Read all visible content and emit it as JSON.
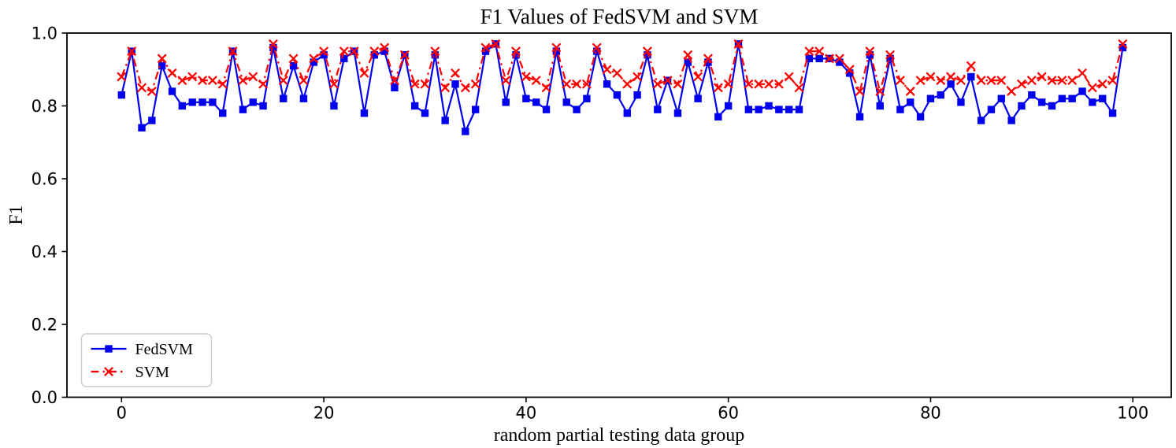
{
  "chart_data": {
    "type": "line",
    "title": "F1 Values of FedSVM and SVM",
    "xlabel": "random partial testing data group",
    "ylabel": "F1",
    "xlim": [
      -5.4,
      103.8
    ],
    "ylim": [
      0.0,
      1.0
    ],
    "grid": false,
    "legend_position": "lower left",
    "xticks": [
      0,
      20,
      40,
      60,
      80,
      100
    ],
    "xtick_labels": [
      "0",
      "20",
      "40",
      "60",
      "80",
      "100"
    ],
    "yticks": [
      0.0,
      0.2,
      0.4,
      0.6,
      0.8,
      1.0
    ],
    "ytick_labels": [
      "0.0",
      "0.2",
      "0.4",
      "0.6",
      "0.8",
      "1.0"
    ],
    "x_start": 0,
    "x_step": 1,
    "series": [
      {
        "name": "FedSVM",
        "color": "#0000ee",
        "line_style": "solid",
        "marker": "square",
        "values": [
          0.83,
          0.95,
          0.74,
          0.76,
          0.91,
          0.84,
          0.8,
          0.81,
          0.81,
          0.81,
          0.78,
          0.95,
          0.79,
          0.81,
          0.8,
          0.96,
          0.82,
          0.91,
          0.82,
          0.92,
          0.94,
          0.8,
          0.93,
          0.95,
          0.78,
          0.94,
          0.95,
          0.85,
          0.94,
          0.8,
          0.78,
          0.94,
          0.76,
          0.86,
          0.73,
          0.79,
          0.95,
          0.97,
          0.81,
          0.94,
          0.82,
          0.81,
          0.79,
          0.95,
          0.81,
          0.79,
          0.82,
          0.95,
          0.86,
          0.83,
          0.78,
          0.83,
          0.94,
          0.79,
          0.87,
          0.78,
          0.92,
          0.82,
          0.92,
          0.77,
          0.8,
          0.97,
          0.79,
          0.79,
          0.8,
          0.79,
          0.79,
          0.79,
          0.93,
          0.93,
          0.93,
          0.92,
          0.89,
          0.77,
          0.94,
          0.8,
          0.93,
          0.79,
          0.81,
          0.77,
          0.82,
          0.83,
          0.86,
          0.81,
          0.88,
          0.76,
          0.79,
          0.82,
          0.76,
          0.8,
          0.83,
          0.81,
          0.8,
          0.82,
          0.82,
          0.84,
          0.81,
          0.82,
          0.78,
          0.96
        ]
      },
      {
        "name": "SVM",
        "color": "#ff0000",
        "line_style": "dashdot",
        "marker": "x",
        "values": [
          0.88,
          0.95,
          0.85,
          0.84,
          0.93,
          0.89,
          0.87,
          0.88,
          0.87,
          0.87,
          0.86,
          0.95,
          0.87,
          0.88,
          0.86,
          0.97,
          0.87,
          0.93,
          0.87,
          0.93,
          0.95,
          0.86,
          0.95,
          0.95,
          0.89,
          0.95,
          0.96,
          0.87,
          0.94,
          0.86,
          0.86,
          0.95,
          0.85,
          0.89,
          0.85,
          0.86,
          0.96,
          0.97,
          0.87,
          0.95,
          0.88,
          0.87,
          0.85,
          0.96,
          0.86,
          0.86,
          0.86,
          0.96,
          0.9,
          0.89,
          0.86,
          0.88,
          0.95,
          0.86,
          0.87,
          0.86,
          0.94,
          0.88,
          0.93,
          0.85,
          0.86,
          0.97,
          0.86,
          0.86,
          0.86,
          0.86,
          0.88,
          0.85,
          0.95,
          0.95,
          0.93,
          0.93,
          0.9,
          0.84,
          0.95,
          0.84,
          0.94,
          0.87,
          0.84,
          0.87,
          0.88,
          0.87,
          0.88,
          0.87,
          0.91,
          0.87,
          0.87,
          0.87,
          0.84,
          0.86,
          0.87,
          0.88,
          0.87,
          0.87,
          0.87,
          0.89,
          0.85,
          0.86,
          0.87,
          0.97
        ]
      }
    ]
  }
}
